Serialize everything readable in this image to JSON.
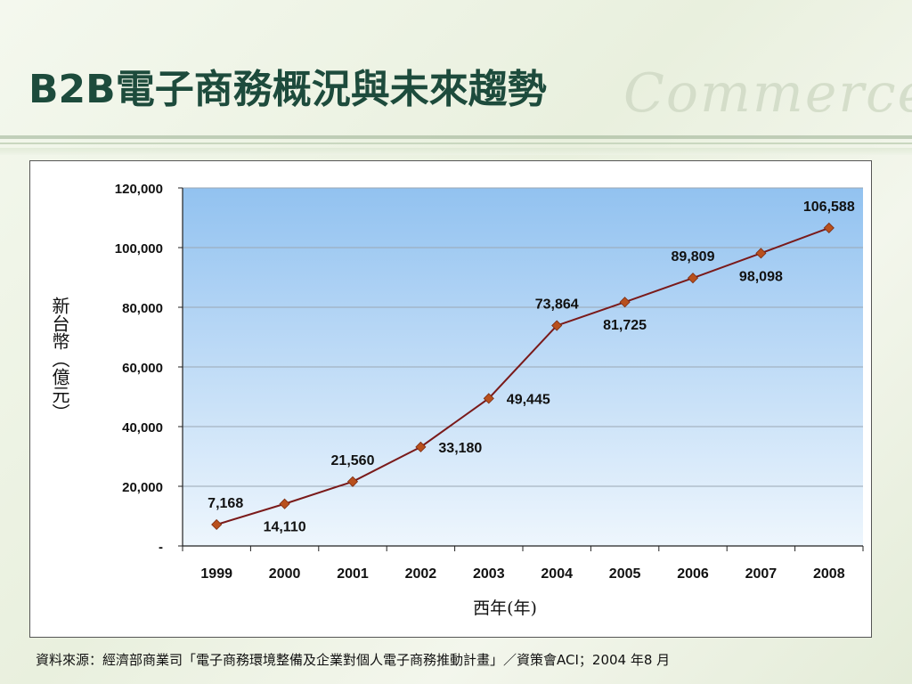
{
  "slide": {
    "title": "B2B電子商務概況與未來趨勢",
    "watermark": "Commerce",
    "footer": "資料來源：經濟部商業司「電子商務環境整備及企業對個人電子商務推動計畫」／資策會ACI；2004 年8 月"
  },
  "chart_data": {
    "type": "line",
    "title": "",
    "xlabel": "西年(年)",
    "ylabel": "新台幣（億元）",
    "categories": [
      "1999",
      "2000",
      "2001",
      "2002",
      "2003",
      "2004",
      "2005",
      "2006",
      "2007",
      "2008"
    ],
    "series": [
      {
        "values": [
          7168,
          14110,
          21560,
          33180,
          49445,
          73864,
          81725,
          89809,
          98098,
          106588
        ]
      }
    ],
    "data_labels": [
      "7,168",
      "14,110",
      "21,560",
      "33,180",
      "49,445",
      "73,864",
      "81,725",
      "89,809",
      "98,098",
      "106,588"
    ],
    "ylim": [
      0,
      120000
    ],
    "yticks": [
      "-",
      "20,000",
      "40,000",
      "60,000",
      "80,000",
      "100,000",
      "120,000"
    ],
    "grid": true,
    "colors": {
      "line": "#7a1a1a",
      "marker": "#b8501d",
      "plot_top": "#92c2f0",
      "plot_bottom": "#eef6fd"
    }
  }
}
